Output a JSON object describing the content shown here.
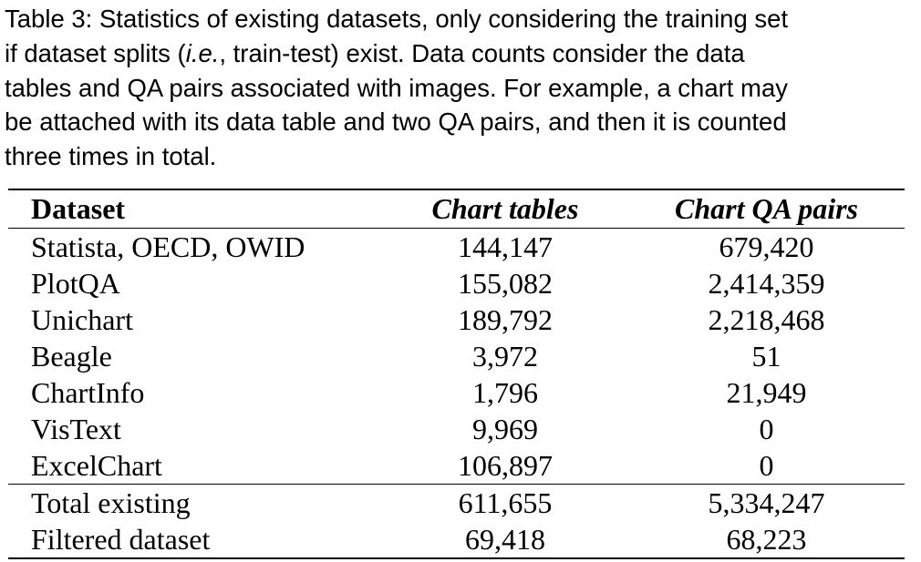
{
  "caption": {
    "prefix": "Table 3:",
    "lines": [
      " Statistics of existing datasets, only considering the training set",
      ") exist.   Data counts consider the data",
      "tables and QA pairs associated with images. For example, a chart may",
      "be attached with its data table and two QA pairs, and then it is counted",
      "three times in total."
    ],
    "line2_start": "if dataset splits (",
    "line2_italic": "i.e.",
    "line2_mid": ", train-test"
  },
  "table": {
    "headers": [
      "Dataset",
      "Chart tables",
      "Chart QA pairs"
    ],
    "rows": [
      [
        "Statista, OECD, OWID",
        "144,147",
        "679,420"
      ],
      [
        "PlotQA",
        "155,082",
        "2,414,359"
      ],
      [
        "Unichart",
        "189,792",
        "2,218,468"
      ],
      [
        "Beagle",
        "3,972",
        "51"
      ],
      [
        "ChartInfo",
        "1,796",
        "21,949"
      ],
      [
        "VisText",
        "9,969",
        "0"
      ],
      [
        "ExcelChart",
        "106,897",
        "0"
      ]
    ],
    "totals": [
      [
        "Total existing",
        "611,655",
        "5,334,247"
      ],
      [
        "Filtered dataset",
        "69,418",
        "68,223"
      ]
    ]
  }
}
